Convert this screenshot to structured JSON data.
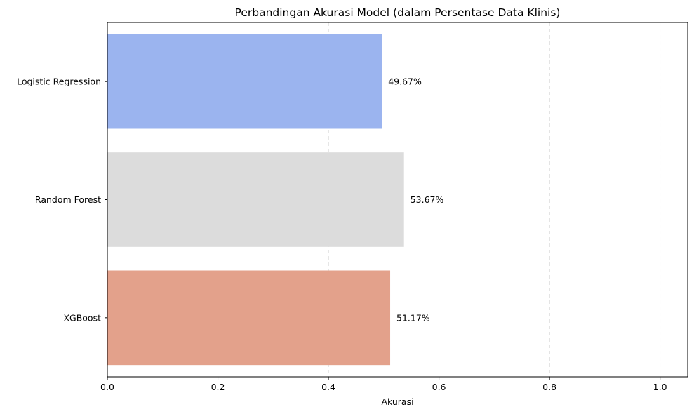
{
  "chart_data": {
    "type": "bar",
    "orientation": "horizontal",
    "title": "Perbandingan Akurasi Model (dalam Persentase Data Klinis)",
    "xlabel": "Akurasi",
    "ylabel": "",
    "xlim": [
      0,
      1.05
    ],
    "xticks": [
      0,
      0.2,
      0.4,
      0.6,
      0.8,
      1.0
    ],
    "xtick_labels": [
      "0.0",
      "0.2",
      "0.4",
      "0.6",
      "0.8",
      "1.0"
    ],
    "grid": "x-axis dashed",
    "categories": [
      "Logistic Regression",
      "Random Forest",
      "XGBoost"
    ],
    "values": [
      0.4967,
      0.5367,
      0.5117
    ],
    "data_labels": [
      "49.67%",
      "53.67%",
      "51.17%"
    ],
    "colors": [
      "#9bb4ef",
      "#dcdcdc",
      "#e3a18b"
    ]
  }
}
